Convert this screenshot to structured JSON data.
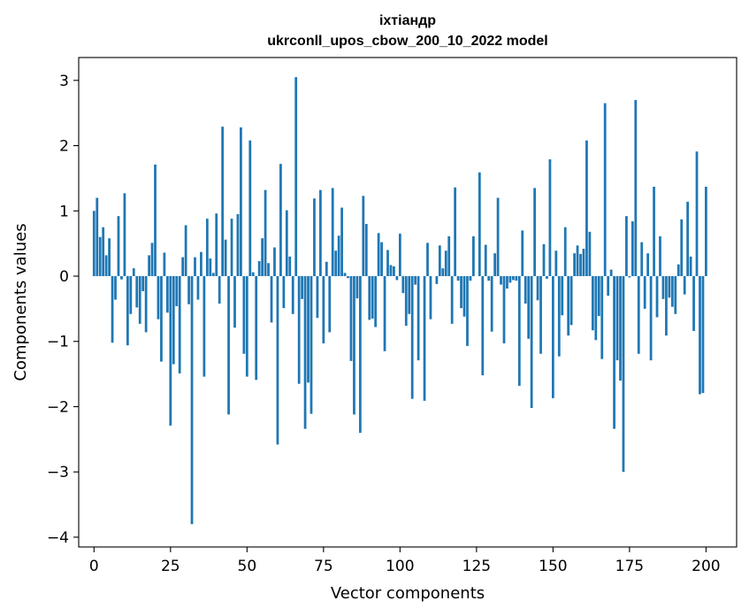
{
  "chart_data": {
    "type": "bar",
    "title": "іхтіандр",
    "subtitle": "ukrconll_upos_cbow_200_10_2022 model",
    "xlabel": "Vector components",
    "ylabel": "Components values",
    "xlim": [
      -5,
      210
    ],
    "ylim": [
      -4.15,
      3.35
    ],
    "xticks": [
      0,
      25,
      50,
      75,
      100,
      125,
      150,
      175,
      200
    ],
    "xtick_labels": [
      "0",
      "25",
      "50",
      "75",
      "100",
      "125",
      "150",
      "175",
      "200"
    ],
    "yticks": [
      3,
      2,
      1,
      0,
      -1,
      -2,
      -3,
      -4
    ],
    "ytick_labels": [
      "3",
      "2",
      "1",
      "0",
      "−1",
      "−2",
      "−3",
      "−4"
    ],
    "bar_color": "#1f77b4",
    "grid": false,
    "values": [
      1.0,
      1.2,
      0.6,
      0.75,
      0.32,
      0.58,
      -1.02,
      -0.36,
      0.92,
      -0.05,
      1.27,
      -1.06,
      -0.58,
      0.12,
      -0.48,
      -0.73,
      -0.23,
      -0.86,
      0.32,
      0.51,
      1.71,
      -0.66,
      -1.31,
      0.36,
      -0.56,
      -2.29,
      -1.35,
      -0.46,
      -1.49,
      0.29,
      0.78,
      -0.43,
      -3.8,
      0.29,
      -0.36,
      0.37,
      -1.54,
      0.88,
      0.27,
      0.05,
      0.96,
      -0.42,
      2.29,
      0.56,
      -2.12,
      0.88,
      -0.79,
      0.95,
      2.28,
      -1.19,
      -1.54,
      2.08,
      0.06,
      -1.59,
      0.23,
      0.58,
      1.32,
      0.2,
      -0.71,
      0.44,
      -2.58,
      1.72,
      -0.49,
      1.01,
      0.3,
      -0.58,
      3.05,
      -1.65,
      -0.35,
      -2.34,
      -1.63,
      -2.11,
      1.19,
      -0.64,
      1.32,
      -1.03,
      0.22,
      -0.86,
      1.35,
      0.39,
      0.62,
      1.05,
      0.05,
      -0.03,
      -1.3,
      -2.12,
      -0.34,
      -2.4,
      1.23,
      0.8,
      -0.67,
      -0.65,
      -0.78,
      0.66,
      0.52,
      -1.15,
      0.4,
      0.17,
      0.15,
      -0.06,
      0.65,
      -0.26,
      -0.76,
      -0.58,
      -1.88,
      -0.13,
      -1.29,
      0.0,
      -1.91,
      0.51,
      -0.66,
      0.0,
      -0.12,
      0.47,
      0.12,
      0.39,
      0.61,
      -0.73,
      1.36,
      -0.07,
      -0.49,
      -0.62,
      -1.07,
      -0.07,
      0.61,
      0.0,
      1.59,
      -1.52,
      0.48,
      -0.07,
      -0.85,
      0.35,
      1.2,
      -0.13,
      -1.03,
      -0.19,
      -0.1,
      -0.06,
      -0.07,
      -1.68,
      0.7,
      -0.42,
      -0.96,
      -2.02,
      1.35,
      -0.37,
      -1.19,
      0.49,
      -0.04,
      1.79,
      -1.87,
      0.39,
      -1.23,
      -0.6,
      0.75,
      -0.91,
      -0.75,
      0.35,
      0.47,
      0.34,
      0.42,
      2.08,
      0.68,
      -0.83,
      -0.98,
      -0.61,
      -1.27,
      2.65,
      -0.3,
      0.1,
      -2.34,
      -1.29,
      -1.6,
      -3.0,
      0.92,
      -0.02,
      0.84,
      2.7,
      -1.19,
      0.52,
      -0.5,
      0.35,
      -1.29,
      1.37,
      -0.63,
      0.61,
      -0.35,
      -0.91,
      -0.33,
      -0.47,
      -0.58,
      0.18,
      0.87,
      -0.28,
      1.14,
      0.3,
      -0.84,
      1.91,
      -1.81,
      -1.79,
      1.37
    ]
  }
}
